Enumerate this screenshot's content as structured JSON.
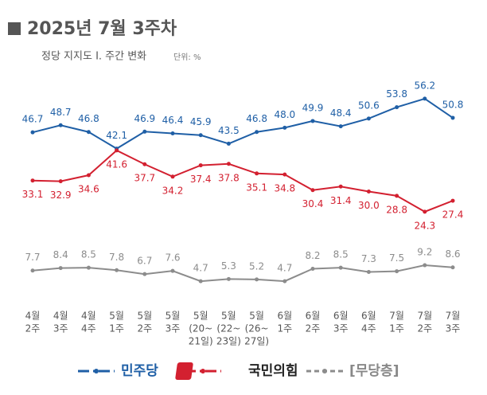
{
  "chart_data": {
    "type": "line",
    "title": "2025년 7월 3주차",
    "subtitle": "정당 지지도 Ⅰ. 주간 변화",
    "unit": "단위: %",
    "categories": [
      [
        "4월",
        "2주"
      ],
      [
        "4월",
        "3주"
      ],
      [
        "4월",
        "4주"
      ],
      [
        "5월",
        "1주"
      ],
      [
        "5월",
        "2주"
      ],
      [
        "5월",
        "3주"
      ],
      [
        "5월",
        "(20~",
        "21일)"
      ],
      [
        "5월",
        "(22~",
        "23일)"
      ],
      [
        "5월",
        "(26~",
        "27일)"
      ],
      [
        "6월",
        "1주"
      ],
      [
        "6월",
        "2주"
      ],
      [
        "6월",
        "3주"
      ],
      [
        "6월",
        "4주"
      ],
      [
        "7월",
        "1주"
      ],
      [
        "7월",
        "2주"
      ],
      [
        "7월",
        "3주"
      ]
    ],
    "ylim": [
      0,
      60
    ],
    "series": [
      {
        "name": "민주당",
        "color": "#1f5fa6",
        "label_position": "above",
        "values": [
          46.7,
          48.7,
          46.8,
          42.1,
          46.9,
          46.4,
          45.9,
          43.5,
          46.8,
          48.0,
          49.9,
          48.4,
          50.6,
          53.8,
          56.2,
          50.8
        ],
        "value_labels": [
          "46.7",
          "48.7",
          "46.8",
          "42.1",
          "46.9",
          "46.4",
          "45.9",
          "43.5",
          "46.8",
          "48.0",
          "49.9",
          "48.4",
          "50.6",
          "53.8",
          "56.2",
          "50.8"
        ]
      },
      {
        "name": "국민의힘",
        "color": "#d32030",
        "label_position": "below",
        "values": [
          33.1,
          32.9,
          34.6,
          41.6,
          37.7,
          34.2,
          37.4,
          37.8,
          35.1,
          34.8,
          30.4,
          31.4,
          30.0,
          28.8,
          24.3,
          27.4
        ],
        "value_labels": [
          "33.1",
          "32.9",
          "34.6",
          "41.6",
          "37.7",
          "34.2",
          "37.4",
          "37.8",
          "35.1",
          "34.8",
          "30.4",
          "31.4",
          "30.0",
          "28.8",
          "24.3",
          "27.4"
        ]
      },
      {
        "name": "[무당층]",
        "color": "#8c8c8c",
        "label_position": "above",
        "values": [
          7.7,
          8.4,
          8.5,
          7.8,
          6.7,
          7.6,
          4.7,
          5.3,
          5.2,
          4.7,
          8.2,
          8.5,
          7.3,
          7.5,
          9.2,
          8.6
        ],
        "value_labels": [
          "7.7",
          "8.4",
          "8.5",
          "7.8",
          "6.7",
          "7.6",
          "4.7",
          "5.3",
          "5.2",
          "4.7",
          "8.2",
          "8.5",
          "7.3",
          "7.5",
          "9.2",
          "8.6"
        ]
      }
    ]
  }
}
